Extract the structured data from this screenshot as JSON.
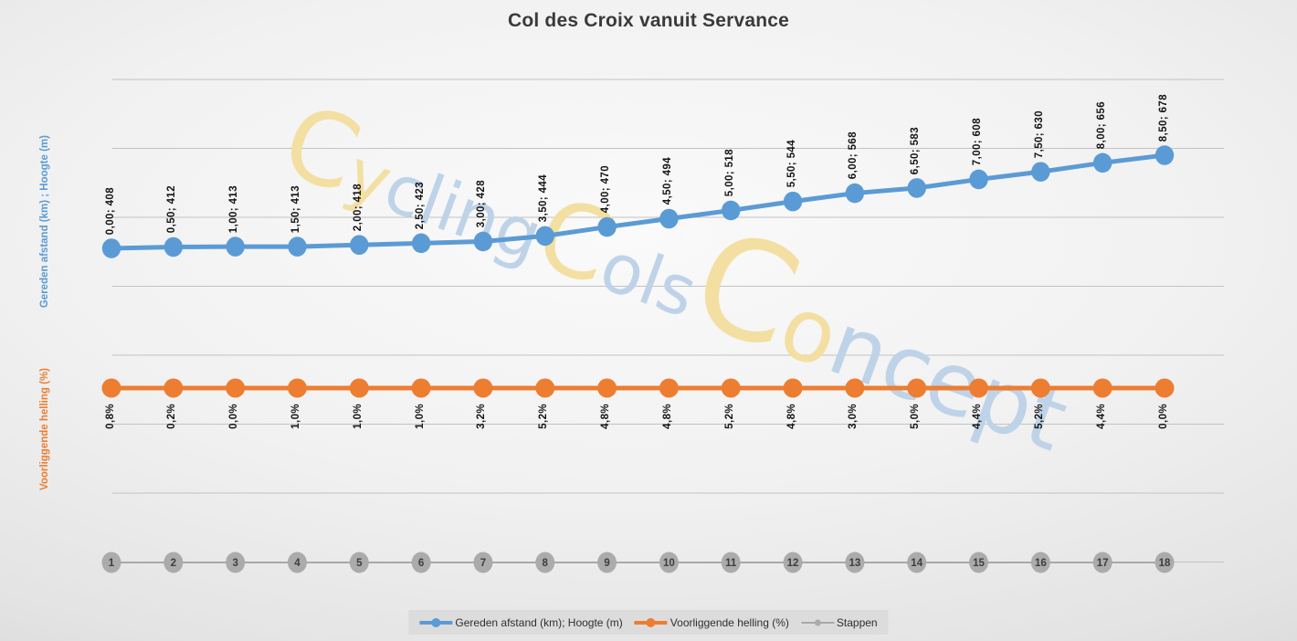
{
  "title": "Col des Croix vanuit Servance",
  "axis": {
    "primary": "Gereden afstand (km) ;  Hoogte (m)",
    "secondary": "Voorliggende helling (%)"
  },
  "watermark": {
    "text": "CyclingColsConcept",
    "colors": {
      "yellow": "#F3DFA2",
      "blue": "#BFD3E8"
    },
    "segments": [
      {
        "text": "C",
        "color": "yellow",
        "size": 110
      },
      {
        "text": "y",
        "color": "yellow",
        "size": 75
      },
      {
        "text": "cling",
        "color": "blue",
        "size": 75
      },
      {
        "text": "C",
        "color": "yellow",
        "size": 110
      },
      {
        "text": "ols",
        "color": "blue",
        "size": 75
      },
      {
        "text": "C",
        "color": "yellow",
        "size": 150
      },
      {
        "text": "o",
        "color": "yellow",
        "size": 95
      },
      {
        "text": "ncept",
        "color": "blue",
        "size": 95
      }
    ]
  },
  "colors": {
    "series_blue": "#5B9BD5",
    "series_orange": "#ED7D31",
    "series_gray_line": "#A8A8A8",
    "series_gray_marker": "#ABABAB",
    "step_number_text": "#3D3D3D",
    "gridline": "#C2C2C2",
    "title_text": "#3A3A3A",
    "data_label_text": "#141414",
    "legend_bg": "#DCDCDC"
  },
  "legend": {
    "items": [
      {
        "label": "Gereden afstand (km); Hoogte (m)",
        "series": "blue"
      },
      {
        "label": "Voorliggende helling (%)",
        "series": "orange"
      },
      {
        "label": "Stappen",
        "series": "gray"
      }
    ]
  },
  "chart_data": {
    "type": "line",
    "title": "Col des Croix vanuit Servance",
    "categories": [
      1,
      2,
      3,
      4,
      5,
      6,
      7,
      8,
      9,
      10,
      11,
      12,
      13,
      14,
      15,
      16,
      17,
      18
    ],
    "x_km": [
      0.0,
      0.5,
      1.0,
      1.5,
      2.0,
      2.5,
      3.0,
      3.5,
      4.0,
      4.5,
      5.0,
      5.5,
      6.0,
      6.5,
      7.0,
      7.5,
      8.0,
      8.5
    ],
    "series": [
      {
        "name": "Gereden afstand (km); Hoogte (m)",
        "axis": "primary",
        "values": [
          408,
          412,
          413,
          413,
          418,
          423,
          428,
          444,
          470,
          494,
          518,
          544,
          568,
          583,
          608,
          630,
          656,
          678
        ],
        "labels": [
          "0,00; 408",
          "0,50; 412",
          "1,00; 413",
          "1,50; 413",
          "2,00; 418",
          "2,50; 423",
          "3,00; 428",
          "3,50; 444",
          "4,00; 470",
          "4,50; 494",
          "5,00; 518",
          "5,50; 544",
          "6,00; 568",
          "6,50; 583",
          "7,00; 608",
          "7,50; 630",
          "8,00; 656",
          "8,50; 678"
        ]
      },
      {
        "name": "Voorliggende helling (%)",
        "axis": "secondary",
        "values": [
          0.8,
          0.2,
          0.0,
          1.0,
          1.0,
          1.0,
          3.2,
          5.2,
          4.8,
          4.8,
          5.2,
          4.8,
          3.0,
          5.0,
          4.4,
          5.2,
          4.4,
          0.0
        ],
        "labels": [
          "0,8%",
          "0,2%",
          "0,0%",
          "1,0%",
          "1,0%",
          "1,0%",
          "3,2%",
          "5,2%",
          "4,8%",
          "4,8%",
          "5,2%",
          "4,8%",
          "3,0%",
          "5,0%",
          "4,4%",
          "5,2%",
          "4,4%",
          "0,0%"
        ]
      },
      {
        "name": "Stappen",
        "axis": "none",
        "values": [
          1,
          2,
          3,
          4,
          5,
          6,
          7,
          8,
          9,
          10,
          11,
          12,
          13,
          14,
          15,
          16,
          17,
          18
        ]
      }
    ],
    "gridlines": {
      "orientation": "horizontal",
      "count": 8
    },
    "legend_position": "bottom"
  }
}
